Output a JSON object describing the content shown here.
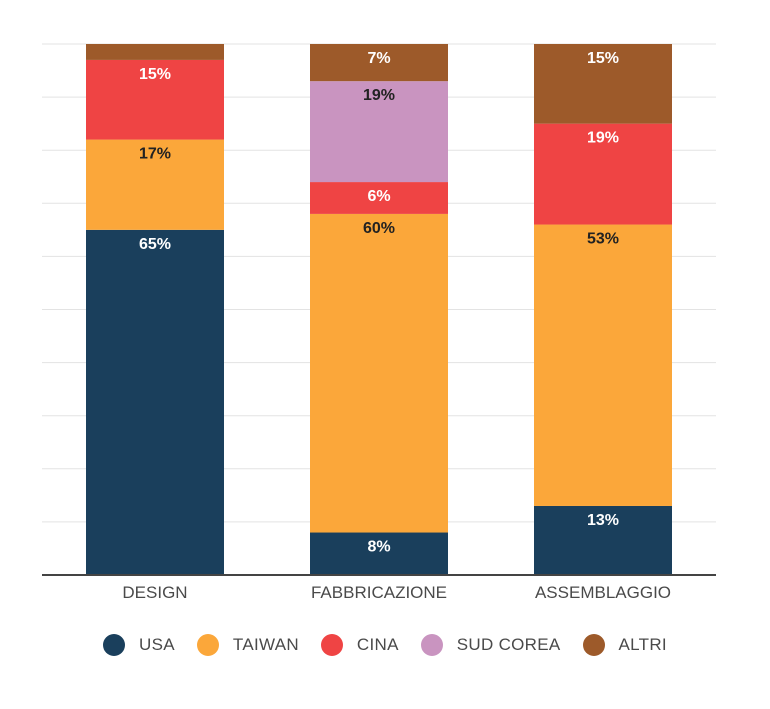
{
  "chart_data": {
    "type": "bar",
    "stacked": true,
    "categories": [
      "DESIGN",
      "FABBRICAZIONE",
      "ASSEMBLAGGIO"
    ],
    "series": [
      {
        "name": "USA",
        "color": "#1a3f5c",
        "values": [
          65,
          8,
          13
        ],
        "labels": [
          "65%",
          "8%",
          "13%"
        ]
      },
      {
        "name": "TAIWAN",
        "color": "#fba73a",
        "values": [
          17,
          60,
          53
        ],
        "labels": [
          "17%",
          "60%",
          "53%"
        ]
      },
      {
        "name": "CINA",
        "color": "#ef4444",
        "values": [
          15,
          6,
          19
        ],
        "labels": [
          "15%",
          "6%",
          "19%"
        ]
      },
      {
        "name": "SUD COREA",
        "color": "#c994c0",
        "values": [
          0,
          19,
          0
        ],
        "labels": [
          "",
          "19%",
          ""
        ]
      },
      {
        "name": "ALTRI",
        "color": "#9d5a2a",
        "values": [
          3,
          7,
          15
        ],
        "labels": [
          "",
          "7%",
          "15%"
        ]
      }
    ],
    "ylim": [
      0,
      100
    ],
    "grid": true,
    "legend": "bottom"
  }
}
